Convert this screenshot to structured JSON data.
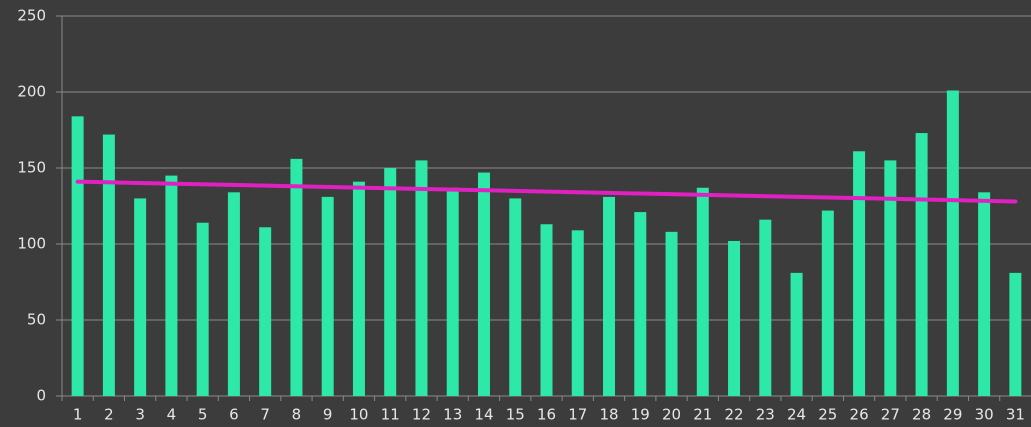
{
  "chart_data": {
    "type": "bar",
    "categories": [
      "1",
      "2",
      "3",
      "4",
      "5",
      "6",
      "7",
      "8",
      "9",
      "10",
      "11",
      "12",
      "13",
      "14",
      "15",
      "16",
      "17",
      "18",
      "19",
      "20",
      "21",
      "22",
      "23",
      "24",
      "25",
      "26",
      "27",
      "28",
      "29",
      "30",
      "31"
    ],
    "values": [
      184,
      172,
      130,
      145,
      114,
      134,
      111,
      156,
      131,
      141,
      150,
      155,
      137,
      147,
      130,
      113,
      109,
      131,
      121,
      108,
      137,
      102,
      116,
      81,
      122,
      161,
      155,
      173,
      201,
      134,
      81
    ],
    "color": "#2ee8a8",
    "trendline": {
      "start": 141,
      "end": 128,
      "color": "#e020c0"
    },
    "ylim": [
      0,
      250
    ],
    "yticks": [
      0,
      50,
      100,
      150,
      200,
      250
    ],
    "grid": true
  }
}
